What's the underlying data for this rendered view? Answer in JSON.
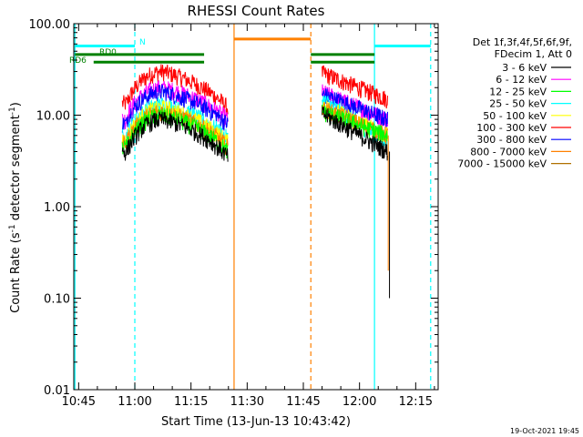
{
  "chart_data": {
    "type": "line",
    "title": "RHESSI Count Rates",
    "xlabel": "Start Time (13-Jun-13 10:43:42)",
    "ylabel_main": "Count Rate (s",
    "ylabel_sup1": "-1",
    "ylabel_mid": " detector segment",
    "ylabel_sup2": "-1",
    "ylabel_end": ")",
    "footer": "19-Oct-2021 19:45",
    "y_scale": "log",
    "ylim": [
      0.01,
      100
    ],
    "xlim": [
      "10:43:42",
      "12:21:00"
    ],
    "x_ticks": [
      "10:45",
      "11:00",
      "11:15",
      "11:30",
      "11:45",
      "12:00",
      "12:15"
    ],
    "y_ticks": [
      "100.00",
      "10.00",
      "1.00",
      "0.10",
      "0.01"
    ],
    "legend": {
      "header_line1": "Det 1f,3f,4f,5f,6f,9f,",
      "header_line2": "FDecim 1, Att 0",
      "position": "right",
      "entries": [
        {
          "label": "3 - 6 keV",
          "color": "#000000"
        },
        {
          "label": "6 - 12 keV",
          "color": "#ff00ff"
        },
        {
          "label": "12 - 25 keV",
          "color": "#00ff00"
        },
        {
          "label": "25 - 50 keV",
          "color": "#00ffff"
        },
        {
          "label": "50 - 100 keV",
          "color": "#ffff00"
        },
        {
          "label": "100 - 300 keV",
          "color": "#ff0000"
        },
        {
          "label": "300 - 800 keV",
          "color": "#0000ff"
        },
        {
          "label": "800 - 7000 keV",
          "color": "#ff8000"
        },
        {
          "label": "7000 - 15000 keV",
          "color": "#b07000"
        }
      ]
    },
    "segments": [
      {
        "start": "10:56:40",
        "end": "11:24:50"
      },
      {
        "start": "11:50:00",
        "end": "12:07:30"
      }
    ],
    "series": [
      {
        "color": "#ff0000",
        "peak1": 30,
        "end1": 12,
        "start2": 29,
        "end2": 15
      },
      {
        "color": "#ff00ff",
        "peak1": 20,
        "end1": 9,
        "start2": 18,
        "end2": 9
      },
      {
        "color": "#0000ff",
        "peak1": 18,
        "end1": 8,
        "start2": 17,
        "end2": 9
      },
      {
        "color": "#00ffff",
        "peak1": 13,
        "end1": 5.5,
        "start2": 15,
        "end2": 5
      },
      {
        "color": "#ffff00",
        "peak1": 12,
        "end1": 5,
        "start2": 13,
        "end2": 6
      },
      {
        "color": "#ff8000",
        "peak1": 11,
        "end1": 4.5,
        "start2": 12,
        "end2": 6
      },
      {
        "color": "#00ff00",
        "peak1": 10,
        "end1": 4,
        "start2": 11,
        "end2": 6
      },
      {
        "color": "#000000",
        "peak1": 9,
        "end1": 3.5,
        "start2": 10.5,
        "end2": 4
      }
    ],
    "flag_lines": [
      {
        "label": "N",
        "color": "#00ffff",
        "y": 57,
        "ranges": [
          [
            "10:44:00",
            "11:00:00"
          ],
          [
            "12:04:00",
            "12:19:00"
          ]
        ]
      },
      {
        "label": "RD0",
        "color": "#008000",
        "y": 46,
        "ranges": [
          [
            "10:44:00",
            "11:18:30"
          ],
          [
            "11:47:00",
            "12:04:00"
          ]
        ]
      },
      {
        "label": "RD6",
        "color": "#008000",
        "y": 38,
        "ranges": [
          [
            "10:49:00",
            "11:18:30"
          ],
          [
            "11:47:00",
            "12:04:00"
          ]
        ]
      },
      {
        "label": "",
        "color": "#ff8000",
        "y": 68,
        "ranges": [
          [
            "11:26:30",
            "11:47:00"
          ]
        ]
      }
    ],
    "vlines": [
      {
        "time": "10:44:00",
        "color": "#00ffff",
        "style": "solid"
      },
      {
        "time": "11:00:00",
        "color": "#00ffff",
        "style": "dashed"
      },
      {
        "time": "11:26:30",
        "color": "#ff8000",
        "style": "solid"
      },
      {
        "time": "11:47:00",
        "color": "#ff8000",
        "style": "dashed"
      },
      {
        "time": "12:04:00",
        "color": "#00ffff",
        "style": "solid"
      },
      {
        "time": "12:19:00",
        "color": "#00ffff",
        "style": "dashed"
      }
    ]
  }
}
